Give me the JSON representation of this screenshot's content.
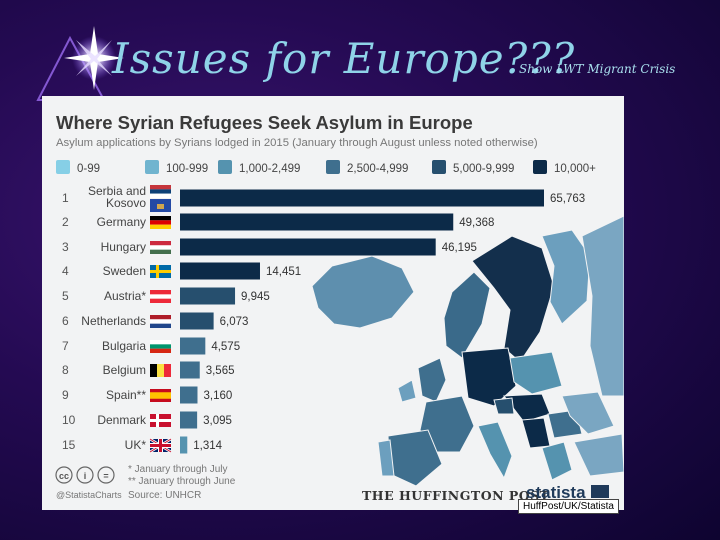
{
  "slide": {
    "title": "Issues for Europe???",
    "subtitle": "Show LWT Migrant Crisis",
    "image_credit": "HuffPost/UK/Statista"
  },
  "chart_data": {
    "type": "bar",
    "title": "Where Syrian Refugees Seek Asylum in Europe",
    "subtitle": "Asylum applications by Syrians lodged in 2015 (January through August unless noted otherwise)",
    "legend": [
      {
        "label": "0-99",
        "color": "#86cfe6"
      },
      {
        "label": "100-999",
        "color": "#70b4cf"
      },
      {
        "label": "1,000-2,499",
        "color": "#5593af"
      },
      {
        "label": "2,500-4,999",
        "color": "#3f6f8e"
      },
      {
        "label": "5,000-9,999",
        "color": "#264f6e"
      },
      {
        "label": "10,000+",
        "color": "#0c2a48"
      }
    ],
    "rows": [
      {
        "rank": "1",
        "country": "Serbia and Kosovo",
        "label_lines": [
          "Serbia and",
          "Kosovo"
        ],
        "value": 65763,
        "value_label": "65,763",
        "flags": [
          "serbia",
          "kosovo"
        ]
      },
      {
        "rank": "2",
        "country": "Germany",
        "label_lines": [
          "Germany"
        ],
        "value": 49368,
        "value_label": "49,368",
        "flags": [
          "germany"
        ]
      },
      {
        "rank": "3",
        "country": "Hungary",
        "label_lines": [
          "Hungary"
        ],
        "value": 46195,
        "value_label": "46,195",
        "flags": [
          "hungary"
        ]
      },
      {
        "rank": "4",
        "country": "Sweden",
        "label_lines": [
          "Sweden"
        ],
        "value": 14451,
        "value_label": "14,451",
        "flags": [
          "sweden"
        ]
      },
      {
        "rank": "5",
        "country": "Austria*",
        "label_lines": [
          "Austria*"
        ],
        "value": 9945,
        "value_label": "9,945",
        "flags": [
          "austria"
        ]
      },
      {
        "rank": "6",
        "country": "Netherlands",
        "label_lines": [
          "Netherlands"
        ],
        "value": 6073,
        "value_label": "6,073",
        "flags": [
          "netherlands"
        ]
      },
      {
        "rank": "7",
        "country": "Bulgaria",
        "label_lines": [
          "Bulgaria"
        ],
        "value": 4575,
        "value_label": "4,575",
        "flags": [
          "bulgaria"
        ]
      },
      {
        "rank": "8",
        "country": "Belgium",
        "label_lines": [
          "Belgium"
        ],
        "value": 3565,
        "value_label": "3,565",
        "flags": [
          "belgium"
        ]
      },
      {
        "rank": "9",
        "country": "Spain**",
        "label_lines": [
          "Spain**"
        ],
        "value": 3160,
        "value_label": "3,160",
        "flags": [
          "spain"
        ]
      },
      {
        "rank": "10",
        "country": "Denmark",
        "label_lines": [
          "Denmark"
        ],
        "value": 3095,
        "value_label": "3,095",
        "flags": [
          "denmark"
        ]
      },
      {
        "rank": "15",
        "country": "UK*",
        "label_lines": [
          "UK*"
        ],
        "value": 1314,
        "value_label": "1,314",
        "flags": [
          "uk"
        ]
      }
    ],
    "xlim": [
      0,
      65763
    ],
    "footnotes": [
      "* January through July",
      "** January through June"
    ],
    "source": "Source: UNHCR",
    "handle": "@StatistaCharts",
    "publisher": "THE HUFFINGTON POST",
    "brand": "statista"
  }
}
